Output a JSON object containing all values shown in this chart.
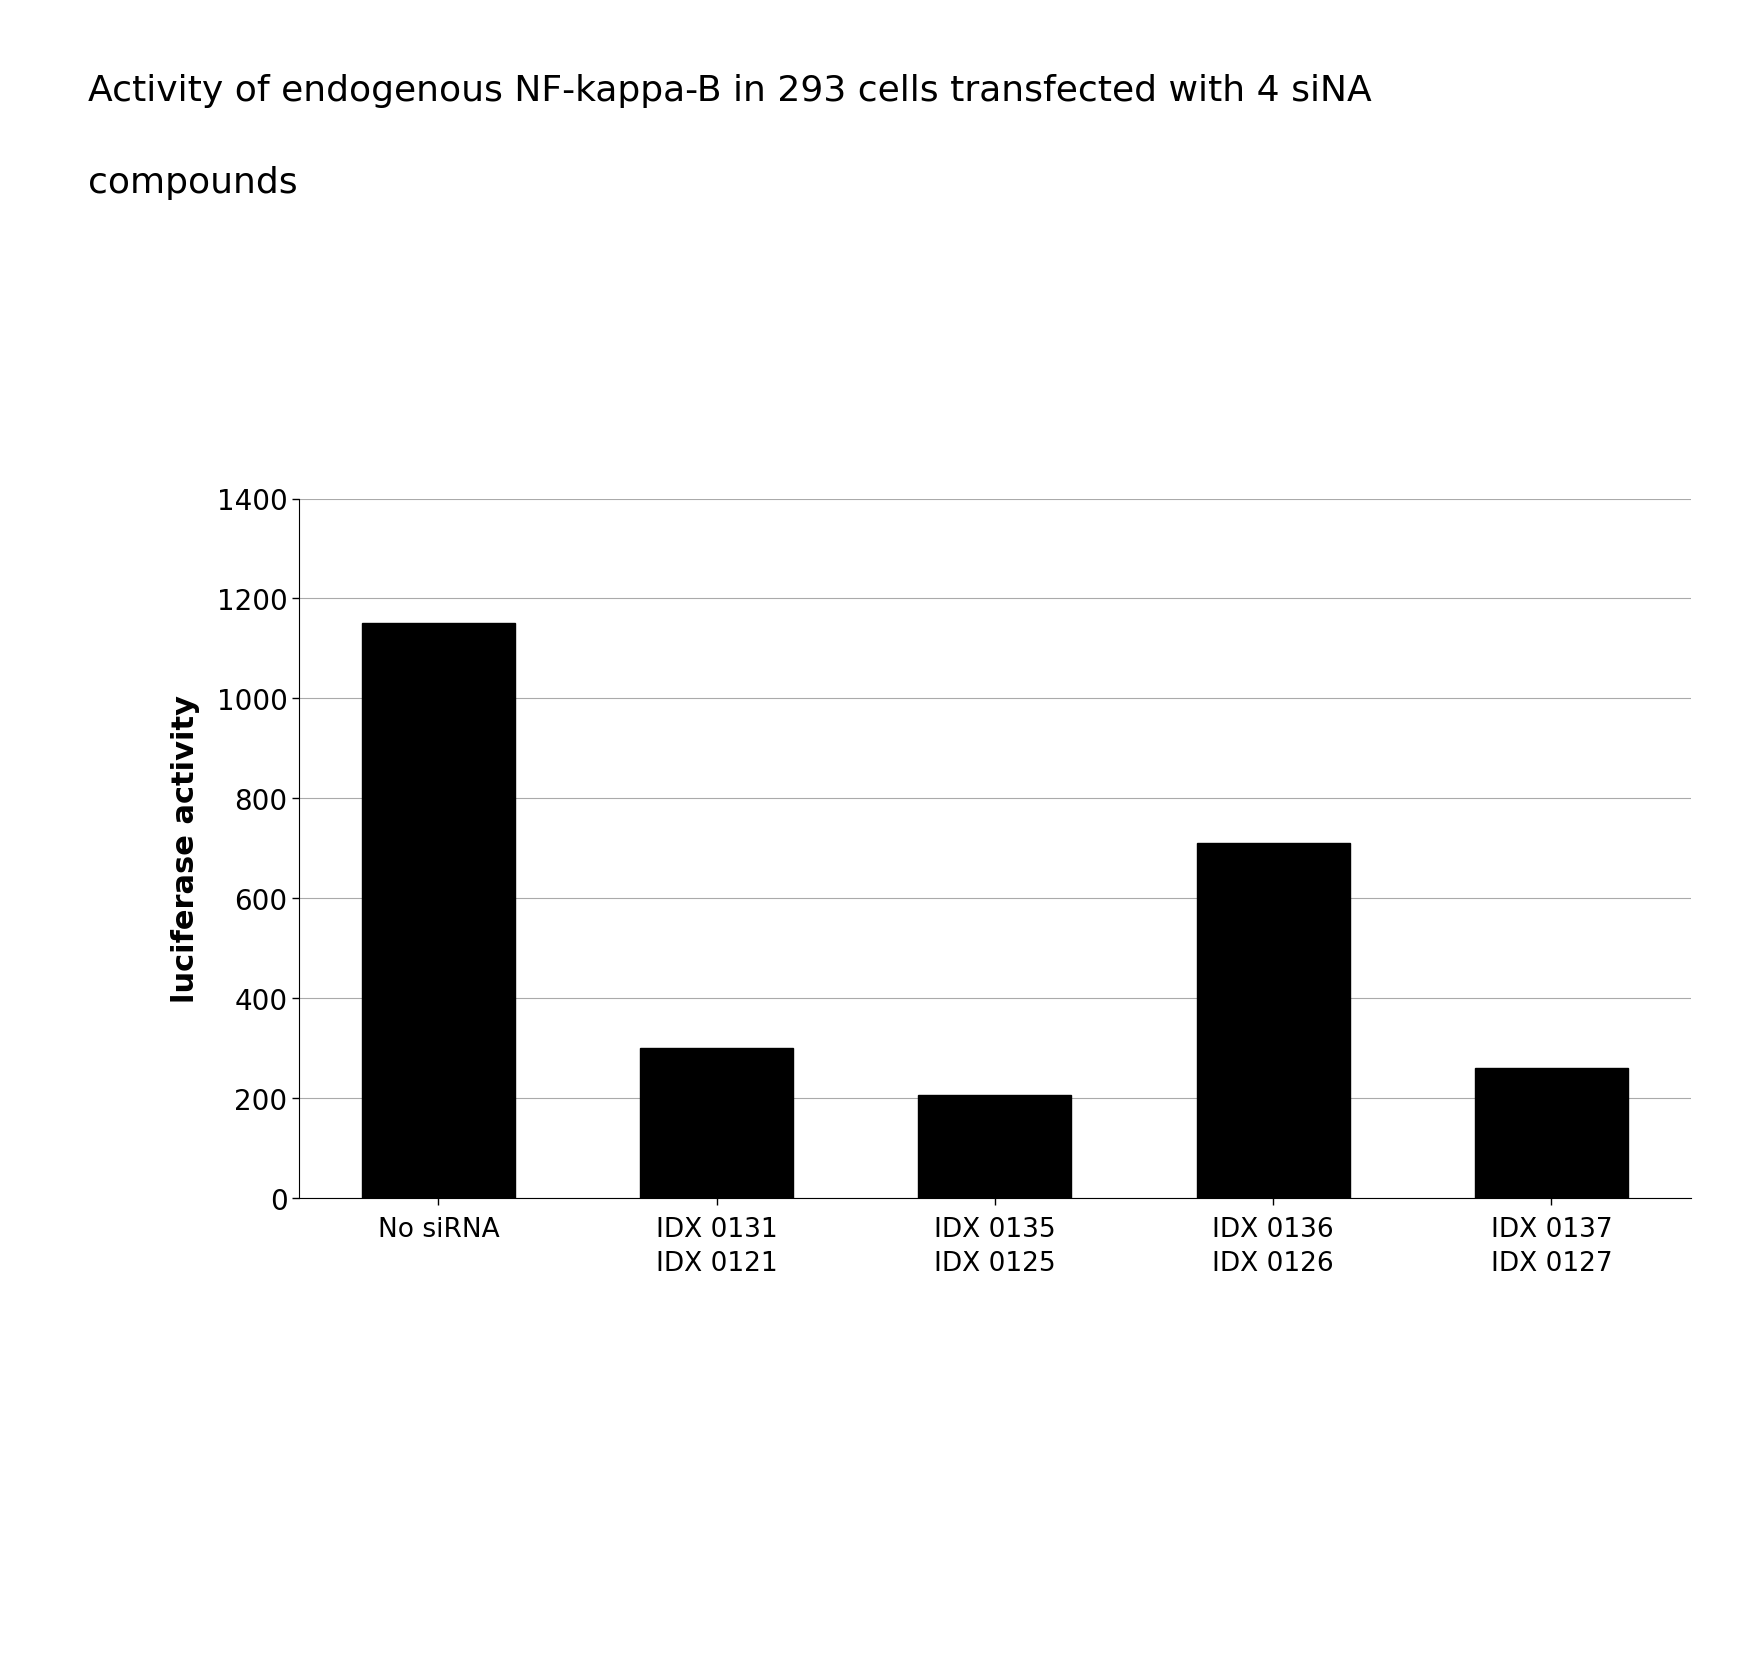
{
  "title_line1": "Activity of endogenous NF-kappa-B in 293 cells transfected with 4 siNA",
  "title_line2": "compounds",
  "ylabel": "luciferase activity",
  "bar_values": [
    1150,
    300,
    205,
    710,
    260
  ],
  "bar_color": "#000000",
  "categories": [
    "No siRNA",
    "IDX 0131\nIDX 0121",
    "IDX 0135\nIDX 0125",
    "IDX 0136\nIDX 0126",
    "IDX 0137\nIDX 0127"
  ],
  "ylim": [
    0,
    1400
  ],
  "yticks": [
    0,
    200,
    400,
    600,
    800,
    1000,
    1200,
    1400
  ],
  "background_color": "#ffffff",
  "title_fontsize": 26,
  "ylabel_fontsize": 22,
  "tick_fontsize": 20,
  "xtick_fontsize": 19,
  "bar_width": 0.55,
  "grid_color": "#aaaaaa",
  "axis_color": "#000000"
}
